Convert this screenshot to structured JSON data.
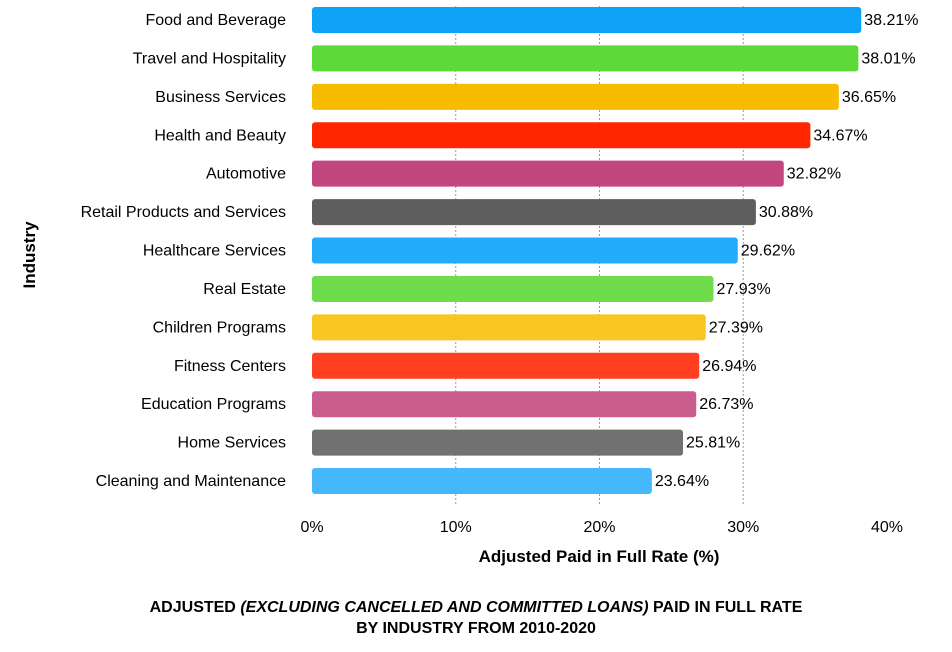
{
  "chart_data": {
    "type": "bar",
    "orientation": "horizontal",
    "categories": [
      "Food and Beverage",
      "Travel and Hospitality",
      "Business Services",
      "Health and Beauty",
      "Automotive",
      "Retail Products and Services",
      "Healthcare Services",
      "Real Estate",
      "Children Programs",
      "Fitness Centers",
      "Education Programs",
      "Home Services",
      "Cleaning and Maintenance"
    ],
    "values": [
      38.21,
      38.01,
      36.65,
      34.67,
      32.82,
      30.88,
      29.62,
      27.93,
      27.39,
      26.94,
      26.73,
      25.81,
      23.64
    ],
    "value_labels": [
      "38.21%",
      "38.01%",
      "36.65%",
      "34.67%",
      "32.82%",
      "30.88%",
      "29.62%",
      "27.93%",
      "27.39%",
      "26.94%",
      "26.73%",
      "25.81%",
      "23.64%"
    ],
    "colors": [
      "#0fa2f9",
      "#5dd93a",
      "#f7bb00",
      "#ff2600",
      "#c2477f",
      "#5e5e5e",
      "#21adfb",
      "#6fdd4b",
      "#f9c520",
      "#ff3f1f",
      "#cb5c8e",
      "#717171",
      "#45b8fb"
    ],
    "xlabel": "Adjusted Paid in Full Rate (%)",
    "ylabel": "Industry",
    "xlim": [
      0,
      40
    ],
    "xticks": [
      0,
      10,
      20,
      30,
      40
    ],
    "xtick_labels": [
      "0%",
      "10%",
      "20%",
      "30%",
      "40%"
    ],
    "grid": "vertical dashed",
    "title_parts": {
      "prefix": "ADJUSTED ",
      "italic": "(EXCLUDING CANCELLED AND COMMITTED LOANS)",
      "suffix": " PAID IN FULL RATE",
      "line2": "BY INDUSTRY FROM 2010-2020"
    }
  }
}
